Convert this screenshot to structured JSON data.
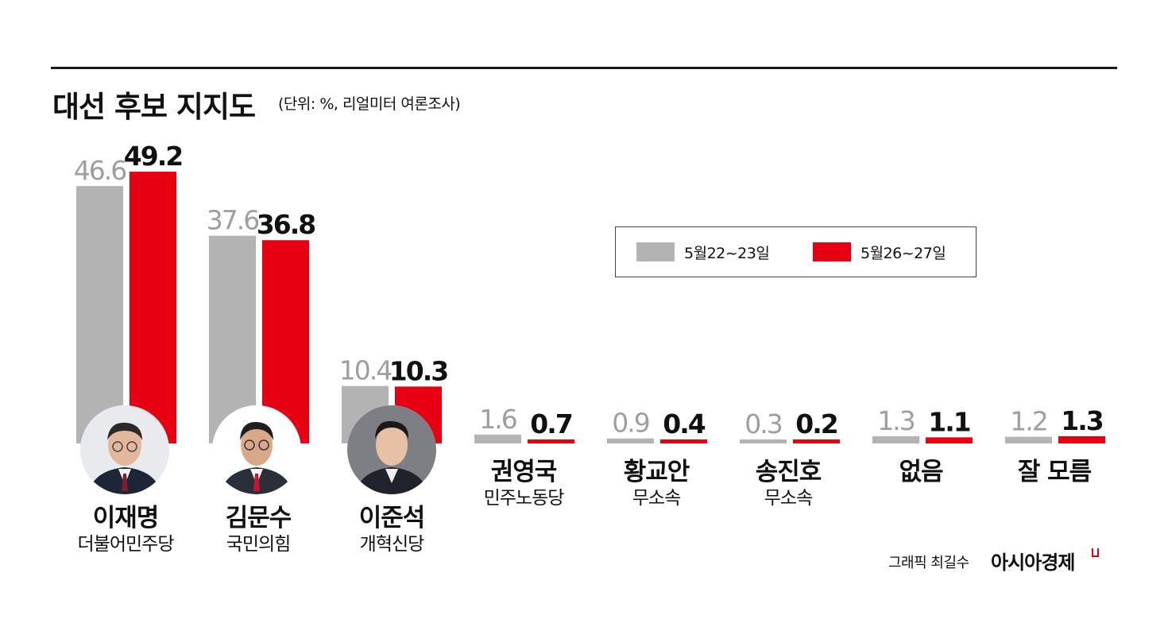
{
  "title": "대선 후보 지지도",
  "subtitle": "(단위: %, 리얼미터 여론조사)",
  "legend": [
    {
      "label": "5월22~23일",
      "color": "#b3b3b3"
    },
    {
      "label": "5월26~27일",
      "color": "#e60012"
    }
  ],
  "credit": "그래픽 최길수",
  "brand": "아시아경제",
  "candidates": [
    {
      "name": "이재명",
      "party": "더불어민주당",
      "photo": "candidate-photo"
    },
    {
      "name": "김문수",
      "party": "국민의힘",
      "photo": "candidate-photo"
    },
    {
      "name": "이준석",
      "party": "개혁신당",
      "photo": "candidate-photo"
    },
    {
      "name": "권영국",
      "party": "민주노동당"
    },
    {
      "name": "황교안",
      "party": "무소속"
    },
    {
      "name": "송진호",
      "party": "무소속"
    },
    {
      "name": "없음",
      "party": ""
    },
    {
      "name": "잘 모름",
      "party": ""
    }
  ],
  "chart_data": {
    "type": "bar",
    "title": "대선 후보 지지도",
    "subtitle": "(단위: %, 리얼미터 여론조사)",
    "categories": [
      "이재명",
      "김문수",
      "이준석",
      "권영국",
      "황교안",
      "송진호",
      "없음",
      "잘 모름"
    ],
    "series": [
      {
        "name": "5월22~23일",
        "color": "#b3b3b3",
        "values": [
          46.6,
          37.6,
          10.4,
          1.6,
          0.9,
          0.3,
          1.3,
          1.2
        ]
      },
      {
        "name": "5월26~27일",
        "color": "#e60012",
        "values": [
          49.2,
          36.8,
          10.3,
          0.7,
          0.4,
          0.2,
          1.1,
          1.3
        ]
      }
    ],
    "ylim": [
      0,
      50
    ],
    "grid": false,
    "legend_position": "top-right"
  }
}
